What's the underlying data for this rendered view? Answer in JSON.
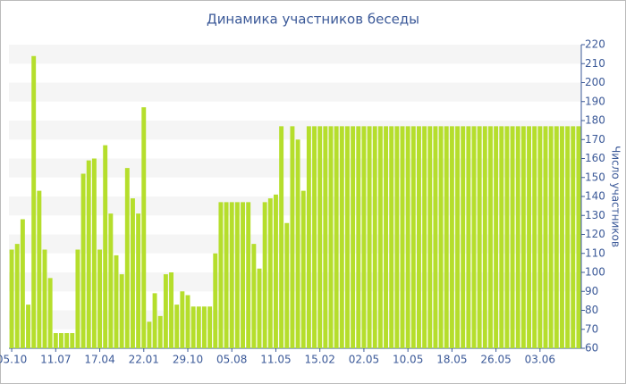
{
  "chart_data": {
    "type": "bar",
    "title": "Динамика участников беседы",
    "y_label": "Число участников",
    "categories": [
      "05.10",
      null,
      null,
      null,
      null,
      null,
      null,
      null,
      "11.07",
      null,
      null,
      null,
      null,
      null,
      null,
      null,
      "17.04",
      null,
      null,
      null,
      null,
      null,
      null,
      null,
      "22.01",
      null,
      null,
      null,
      null,
      null,
      null,
      null,
      "29.10",
      null,
      null,
      null,
      null,
      null,
      null,
      null,
      "05.08",
      null,
      null,
      null,
      null,
      null,
      null,
      null,
      "11.05",
      null,
      null,
      null,
      null,
      null,
      null,
      null,
      "15.02",
      null,
      null,
      null,
      null,
      null,
      null,
      null,
      "02.05",
      null,
      null,
      null,
      null,
      null,
      null,
      null,
      "10.05",
      null,
      null,
      null,
      null,
      null,
      null,
      null,
      "18.05",
      null,
      null,
      null,
      null,
      null,
      null,
      null,
      "26.05",
      null,
      null,
      null,
      null,
      null,
      null,
      null,
      "03.06",
      null,
      null,
      null,
      null,
      null,
      null,
      null
    ],
    "values": [
      112,
      115,
      128,
      83,
      214,
      143,
      112,
      97,
      68,
      68,
      68,
      68,
      112,
      152,
      159,
      160,
      112,
      167,
      131,
      109,
      99,
      155,
      139,
      131,
      187,
      74,
      89,
      77,
      99,
      100,
      83,
      90,
      88,
      82,
      82,
      82,
      82,
      110,
      137,
      137,
      137,
      137,
      137,
      137,
      115,
      102,
      137,
      139,
      141,
      177,
      126,
      177,
      170,
      143,
      177,
      177,
      177,
      177,
      177,
      177,
      177,
      177,
      177,
      177,
      177,
      177,
      177,
      177,
      177,
      177,
      177,
      177,
      177,
      177,
      177,
      177,
      177,
      177,
      177,
      177,
      177,
      177,
      177,
      177,
      177,
      177,
      177,
      177,
      177,
      177,
      177,
      177,
      177,
      177,
      177,
      177,
      177,
      177,
      177,
      177,
      177,
      177,
      177,
      177
    ],
    "color": "#b5de2c",
    "ylim": [
      60,
      220
    ],
    "yticks": [
      60,
      70,
      80,
      90,
      100,
      110,
      120,
      130,
      140,
      150,
      160,
      170,
      180,
      190,
      200,
      210,
      220
    ],
    "grid": true
  }
}
